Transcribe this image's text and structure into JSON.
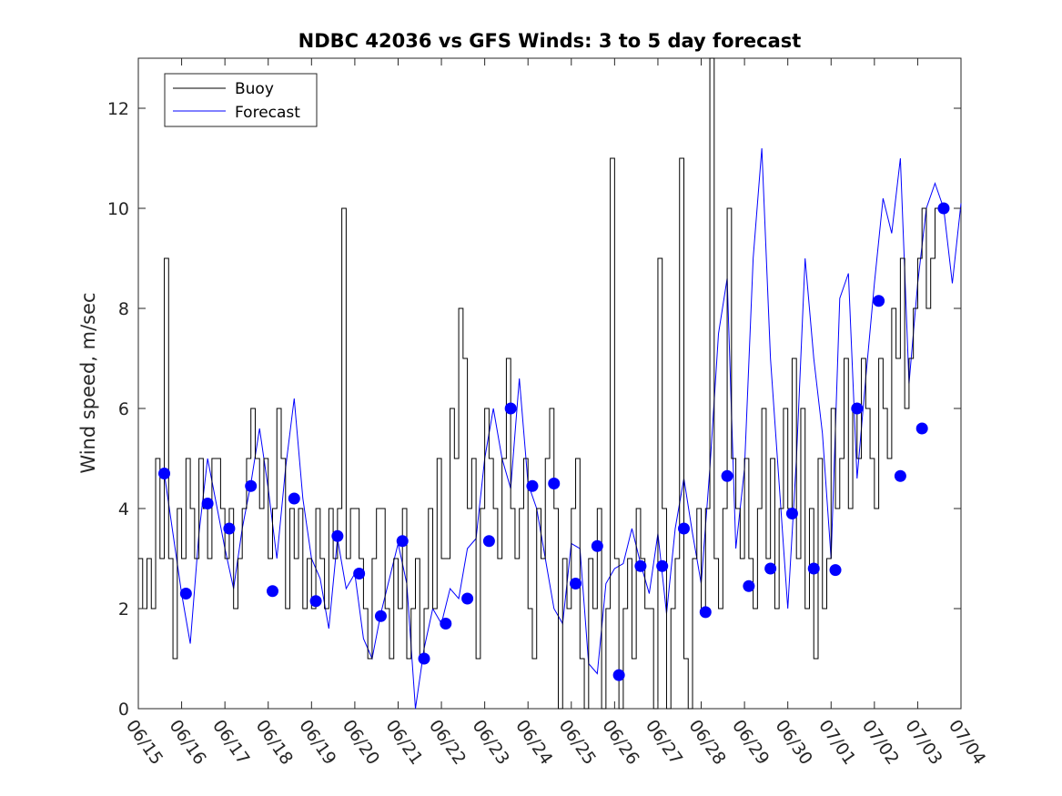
{
  "chart_data": {
    "type": "line",
    "title": "NDBC 42036 vs GFS Winds: 3 to 5 day forecast",
    "xlabel": "",
    "ylabel": "Wind speed, m/sec",
    "xlim": [
      "06/15",
      "07/04"
    ],
    "ylim": [
      0,
      13
    ],
    "yticks": [
      0,
      2,
      4,
      6,
      8,
      10,
      12
    ],
    "xtick_labels": [
      "06/15",
      "06/16",
      "06/17",
      "06/18",
      "06/19",
      "06/20",
      "06/21",
      "06/22",
      "06/23",
      "06/24",
      "06/25",
      "06/26",
      "06/27",
      "06/28",
      "06/29",
      "06/30",
      "07/01",
      "07/02",
      "07/03",
      "07/04"
    ],
    "grid": false,
    "legend": {
      "placement": "top-left",
      "entries": [
        {
          "label": "Buoy",
          "color": "#000000"
        },
        {
          "label": "Forecast",
          "color": "#0000ff"
        }
      ]
    },
    "colors": {
      "buoy": "#000000",
      "forecast": "#0000ff"
    },
    "series": [
      {
        "name": "Buoy",
        "x_days_from_0615": [
          0.0,
          0.1,
          0.2,
          0.3,
          0.4,
          0.5,
          0.6,
          0.7,
          0.8,
          0.9,
          1.0,
          1.1,
          1.2,
          1.3,
          1.4,
          1.5,
          1.6,
          1.7,
          1.8,
          1.9,
          2.0,
          2.1,
          2.2,
          2.3,
          2.4,
          2.5,
          2.6,
          2.7,
          2.8,
          2.9,
          3.0,
          3.1,
          3.2,
          3.3,
          3.4,
          3.5,
          3.6,
          3.7,
          3.8,
          3.9,
          4.0,
          4.1,
          4.2,
          4.3,
          4.4,
          4.5,
          4.6,
          4.7,
          4.8,
          4.9,
          5.0,
          5.1,
          5.2,
          5.3,
          5.4,
          5.5,
          5.6,
          5.7,
          5.8,
          5.9,
          6.0,
          6.1,
          6.2,
          6.3,
          6.4,
          6.5,
          6.6,
          6.7,
          6.8,
          6.9,
          7.0,
          7.1,
          7.2,
          7.3,
          7.4,
          7.5,
          7.6,
          7.7,
          7.8,
          7.9,
          8.0,
          8.1,
          8.2,
          8.3,
          8.4,
          8.5,
          8.6,
          8.7,
          8.8,
          8.9,
          9.0,
          9.1,
          9.2,
          9.3,
          9.4,
          9.5,
          9.6,
          9.7,
          9.8,
          9.9,
          10.0,
          10.1,
          10.2,
          10.3,
          10.4,
          10.5,
          10.6,
          10.7,
          10.8,
          10.9,
          11.0,
          11.1,
          11.2,
          11.3,
          11.4,
          11.5,
          11.6,
          11.7,
          11.8,
          11.9,
          12.0,
          12.1,
          12.2,
          12.3,
          12.4,
          12.5,
          12.6,
          12.7,
          12.8,
          12.9,
          13.0,
          13.1,
          13.2,
          13.3,
          13.4,
          13.5,
          13.6,
          13.7,
          13.8,
          13.9,
          14.0,
          14.1,
          14.2,
          14.3,
          14.4,
          14.5,
          14.6,
          14.7,
          14.8,
          14.9,
          15.0,
          15.1,
          15.2,
          15.3,
          15.4,
          15.5,
          15.6,
          15.7,
          15.8,
          15.9,
          16.0,
          16.1,
          16.2,
          16.3,
          16.4,
          16.5,
          16.6,
          16.7,
          16.8,
          16.9,
          17.0,
          17.1,
          17.2,
          17.3,
          17.4,
          17.5,
          17.6,
          17.7,
          17.8,
          17.9,
          18.0,
          18.1,
          18.2,
          18.3,
          18.4,
          18.5,
          18.6,
          18.7,
          18.8,
          18.9,
          19.0
        ],
        "values": [
          3,
          2,
          3,
          2,
          5,
          3,
          9,
          3,
          1,
          4,
          3,
          5,
          4,
          3,
          5,
          4,
          3,
          5,
          5,
          4,
          3,
          4,
          2,
          3,
          4,
          5,
          6,
          5,
          4,
          5,
          3,
          4,
          6,
          5,
          2,
          4,
          3,
          4,
          2,
          3,
          2,
          4,
          3,
          2,
          4,
          3,
          4,
          10,
          3,
          4,
          4,
          3,
          2,
          1,
          3,
          4,
          4,
          2,
          1,
          3,
          2,
          4,
          1,
          2,
          3,
          1,
          2,
          4,
          2,
          5,
          3,
          3,
          6,
          5,
          8,
          7,
          4,
          5,
          1,
          4,
          6,
          5,
          4,
          3,
          5,
          7,
          4,
          3,
          4,
          5,
          2,
          1,
          4,
          3,
          5,
          6,
          4,
          0,
          3,
          2,
          4,
          5,
          1,
          0,
          3,
          2,
          4,
          0,
          2,
          11,
          3,
          0,
          2,
          3,
          1,
          4,
          3,
          2,
          2,
          0,
          9,
          4,
          0,
          2,
          3,
          11,
          1,
          0,
          3,
          4,
          2,
          4,
          13,
          3,
          2,
          4,
          10,
          5,
          4,
          3,
          5,
          3,
          2,
          4,
          6,
          3,
          5,
          2,
          4,
          6,
          4,
          7,
          3,
          6,
          2,
          4,
          1,
          5,
          2,
          3,
          6,
          4,
          5,
          7,
          4,
          6,
          5,
          7,
          6,
          5,
          4,
          7,
          6,
          5,
          8,
          7,
          9,
          6,
          7,
          8,
          9,
          10,
          8,
          9,
          10
        ],
        "note": ""
      },
      {
        "name": "Forecast",
        "markers": {
          "x_days_from_0615": [
            0.6,
            1.1,
            1.6,
            2.1,
            2.6,
            3.1,
            3.6,
            4.1,
            4.6,
            5.1,
            5.6,
            6.1,
            6.6,
            7.1,
            7.6,
            8.1,
            8.6,
            9.1,
            9.6,
            10.1,
            10.6,
            11.1,
            11.6,
            12.1,
            12.6,
            13.1,
            13.6,
            14.1,
            14.6,
            15.1,
            15.6,
            16.1,
            16.6,
            17.1,
            17.6,
            18.1,
            18.6
          ],
          "values": [
            4.7,
            2.3,
            4.1,
            3.6,
            4.45,
            2.35,
            4.2,
            2.15,
            3.45,
            2.7,
            1.85,
            3.35,
            1.0,
            1.7,
            2.2,
            3.35,
            6.0,
            4.45,
            4.5,
            2.5,
            3.25,
            0.67,
            2.85,
            2.85,
            3.6,
            1.93,
            4.65,
            2.45,
            2.8,
            3.9,
            2.8,
            2.77,
            6.0,
            8.15,
            4.65,
            5.6,
            10.0
          ]
        },
        "runs": [
          {
            "x_days_from_0615": [
              0.6,
              0.8,
              1.0,
              1.2,
              1.4,
              1.6,
              1.8,
              2.0,
              2.2,
              2.4,
              2.6,
              2.8,
              3.0,
              3.2,
              3.4,
              3.6,
              3.8,
              4.0,
              4.2,
              4.4,
              4.6,
              4.8,
              5.0,
              5.2,
              5.4,
              5.6,
              5.8,
              6.0,
              6.2,
              6.4,
              6.6,
              6.8,
              7.0,
              7.2,
              7.4,
              7.6,
              7.8,
              8.0,
              8.2,
              8.4,
              8.6,
              8.8,
              9.0,
              9.2,
              9.4,
              9.6,
              9.8,
              10.0,
              10.2,
              10.4,
              10.6,
              10.8,
              11.0,
              11.2,
              11.4,
              11.6,
              11.8,
              12.0,
              12.2,
              12.4,
              12.6,
              12.8,
              13.0,
              13.2,
              13.4,
              13.6,
              13.8,
              14.0,
              14.2,
              14.4,
              14.6,
              14.8,
              15.0,
              15.2,
              15.4,
              15.6,
              15.8,
              16.0,
              16.2,
              16.4,
              16.6,
              16.8,
              17.0,
              17.2,
              17.4,
              17.6,
              17.8,
              18.0,
              18.2,
              18.4,
              18.6,
              18.8,
              19.0
            ],
            "values": [
              4.7,
              3.5,
              2.3,
              1.3,
              3.5,
              5.0,
              4.1,
              3.2,
              2.4,
              3.6,
              4.5,
              5.6,
              4.4,
              3.0,
              4.8,
              6.2,
              4.2,
              3.0,
              2.6,
              1.6,
              3.4,
              2.4,
              2.7,
              1.4,
              1.0,
              1.9,
              2.6,
              3.3,
              2.5,
              0.0,
              1.2,
              2.0,
              1.7,
              2.4,
              2.2,
              3.2,
              3.4,
              5.0,
              6.0,
              5.0,
              4.4,
              6.6,
              4.5,
              4.0,
              3.0,
              2.0,
              1.7,
              3.3,
              3.2,
              0.9,
              0.7,
              2.5,
              2.8,
              2.9,
              3.6,
              2.9,
              2.3,
              3.5,
              1.9,
              3.6,
              4.6,
              3.5,
              2.5,
              4.8,
              7.5,
              8.6,
              3.2,
              4.8,
              9.0,
              11.2,
              7.0,
              4.5,
              2.0,
              5.0,
              9.0,
              7.0,
              5.5,
              3.0,
              8.2,
              8.7,
              4.6,
              6.6,
              8.5,
              10.2,
              9.5,
              11.0,
              6.5,
              8.5,
              10.0,
              10.5,
              10.0,
              8.5,
              10.1
            ]
          }
        ]
      }
    ]
  }
}
